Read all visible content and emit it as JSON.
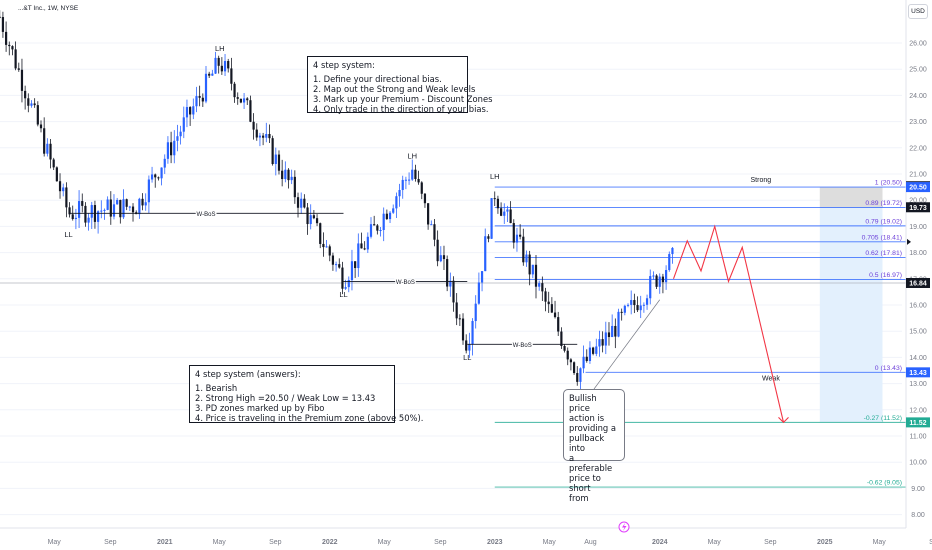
{
  "header": {
    "symbol_text": "...&T Inc., 1W, NYSE",
    "currency": "USD"
  },
  "colors": {
    "up": "#2962ff",
    "down": "#131722",
    "fibo": "#2962ff",
    "fibo_label": "#6c40d9",
    "ext": "#22ab94",
    "projection": "#f23645",
    "premium_zone": "#d9d9d9",
    "discount_zone": "#e3f0fd"
  },
  "notes": {
    "system": {
      "title": "4 step system:",
      "lines": [
        "1. Define your directional bias.",
        "2. Map out the Strong and Weak levels",
        "3. Mark up your Premium - Discount Zones",
        "4. Only trade in the direction of your bias."
      ]
    },
    "answers": {
      "title": "4 step system (answers):",
      "lines": [
        "1. Bearish",
        "2. Strong High =20.50 / Weak Low = 13.43",
        "3. PD zones marked up by Fibo",
        "4. Price is traveling in the Premium zone (above 50%)."
      ]
    },
    "callout": [
      "Bullish price",
      "action is",
      "providing a",
      "pullback into",
      "a preferable",
      "price to short",
      "from"
    ]
  },
  "chart_data": {
    "type": "candlestick",
    "y_axis": {
      "ticks": [
        26.0,
        25.0,
        24.0,
        23.0,
        22.0,
        21.0,
        20.0,
        19.0,
        18.0,
        17.0,
        16.0,
        15.0,
        14.0,
        13.0,
        12.0,
        11.0,
        10.0,
        9.0,
        8.0
      ],
      "tick_labels": [
        "26.00",
        "25.00",
        "24.00",
        "23.00",
        "22.00",
        "21.00",
        "20.00",
        "19.00",
        "18.00",
        "17.00",
        "16.00",
        "15.00",
        "14.00",
        "13.00",
        "12.00",
        "11.00",
        "10.00",
        "9.00",
        "8.00"
      ],
      "range": [
        7.6,
        27.2
      ]
    },
    "x_axis": {
      "ticks": [
        "May",
        "Sep",
        "2021",
        "May",
        "Sep",
        "2022",
        "May",
        "Sep",
        "2023",
        "May",
        "Aug",
        "2024",
        "May",
        "Sep",
        "2025",
        "May",
        "Sep"
      ],
      "bold_ticks": [
        "2021",
        "2022",
        "2023",
        "2024",
        "2025"
      ]
    },
    "price_segments": [
      {
        "from": "2020-01",
        "to": "2020-06",
        "from_price": 27.0,
        "to_price": 19.5
      },
      {
        "from": "2020-06",
        "to": "2020-11",
        "from_price": 19.5,
        "to_price": 19.8
      },
      {
        "from": "2020-11",
        "to": "2021-05",
        "from_price": 19.8,
        "to_price": 25.3
      },
      {
        "from": "2021-05",
        "to": "2022-02",
        "from_price": 25.3,
        "to_price": 17.0
      },
      {
        "from": "2022-02",
        "to": "2022-07",
        "from_price": 17.0,
        "to_price": 21.2
      },
      {
        "from": "2022-07",
        "to": "2022-11",
        "from_price": 21.2,
        "to_price": 14.5
      },
      {
        "from": "2022-11",
        "to": "2023-01",
        "from_price": 14.5,
        "to_price": 20.3
      },
      {
        "from": "2023-01",
        "to": "2023-07",
        "from_price": 20.3,
        "to_price": 13.43
      },
      {
        "from": "2023-07",
        "to": "2024-02",
        "from_price": 13.43,
        "to_price": 17.8
      }
    ],
    "structure_labels": [
      {
        "text": "LH",
        "date": "2021-05",
        "price": 25.7
      },
      {
        "text": "LL",
        "date": "2020-06",
        "price": 18.6
      },
      {
        "text": "LH",
        "date": "2022-07",
        "price": 21.6
      },
      {
        "text": "LL",
        "date": "2022-02",
        "price": 16.3
      },
      {
        "text": "LH",
        "date": "2023-01",
        "price": 20.8
      },
      {
        "text": "LL",
        "date": "2022-11",
        "price": 13.9
      }
    ],
    "bos_lines": [
      {
        "label": "W-BoS",
        "from": "2020-06",
        "to": "2022-02",
        "price": 19.5
      },
      {
        "label": "W-BoS",
        "from": "2022-02",
        "to": "2022-11",
        "price": 16.9
      },
      {
        "label": "W-BoS",
        "from": "2022-11",
        "to": "2023-07",
        "price": 14.5
      }
    ],
    "fib_levels": [
      {
        "label": "1 (20.50)",
        "price": 20.5
      },
      {
        "label": "0.89 (19.72)",
        "price": 19.72
      },
      {
        "label": "0.79 (19.02)",
        "price": 19.02
      },
      {
        "label": "0.705 (18.41)",
        "price": 18.41
      },
      {
        "label": "0.62 (17.81)",
        "price": 17.81
      },
      {
        "label": "0.5 (16.97)",
        "price": 16.97
      },
      {
        "label": "0 (13.43)",
        "price": 13.43
      },
      {
        "label": "-0.27 (11.52)",
        "price": 11.52
      },
      {
        "label": "-0.62 (9.05)",
        "price": 9.05
      }
    ],
    "zone_labels": {
      "strong": "Strong",
      "weak": "Weak"
    },
    "price_badges": [
      {
        "text": "20.54",
        "price": 20.54,
        "color": "#434651"
      },
      {
        "text": "20.50",
        "price": 20.5,
        "color": "#2962ff"
      },
      {
        "text": "19.73",
        "price": 19.73,
        "color": "#131722"
      },
      {
        "text": "16.84",
        "price": 16.84,
        "color": "#131722"
      },
      {
        "text": "13.43",
        "price": 13.43,
        "color": "#2962ff"
      },
      {
        "text": "11.52",
        "price": 11.52,
        "color": "#22ab94"
      }
    ],
    "last_price": 16.84,
    "projection_path": [
      {
        "date": "2024-02",
        "price": 17.0
      },
      {
        "date": "2024-03",
        "price": 18.45
      },
      {
        "date": "2024-04",
        "price": 17.3
      },
      {
        "date": "2024-05",
        "price": 19.0
      },
      {
        "date": "2024-06",
        "price": 16.9
      },
      {
        "date": "2024-07",
        "price": 18.2
      },
      {
        "date": "2024-10",
        "price": 11.52
      }
    ]
  }
}
